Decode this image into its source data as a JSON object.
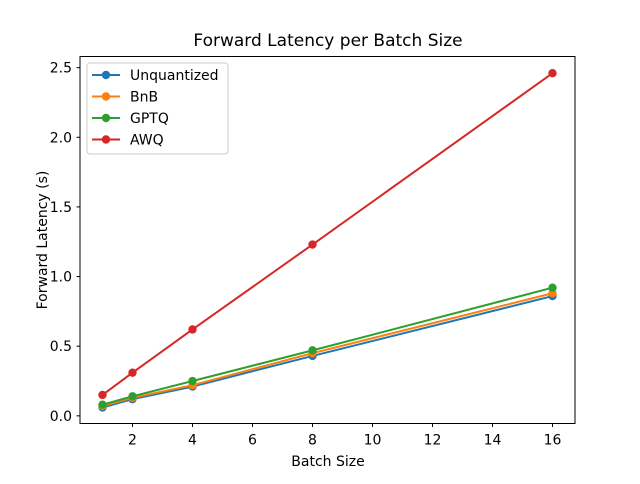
{
  "chart_data": {
    "type": "line",
    "title": "Forward Latency per Batch Size",
    "xlabel": "Batch Size",
    "ylabel": "Forward Latency (s)",
    "x": [
      1,
      2,
      4,
      8,
      16
    ],
    "series": [
      {
        "name": "Unquantized",
        "color": "#1f77b4",
        "values": [
          0.06,
          0.12,
          0.21,
          0.43,
          0.86
        ]
      },
      {
        "name": "BnB",
        "color": "#ff7f0e",
        "values": [
          0.07,
          0.13,
          0.22,
          0.45,
          0.88
        ]
      },
      {
        "name": "GPTQ",
        "color": "#2ca02c",
        "values": [
          0.08,
          0.14,
          0.25,
          0.47,
          0.92
        ]
      },
      {
        "name": "AWQ",
        "color": "#d62728",
        "values": [
          0.15,
          0.31,
          0.62,
          1.23,
          2.46
        ]
      }
    ],
    "xticks": [
      2,
      4,
      6,
      8,
      10,
      12,
      14,
      16
    ],
    "yticks": [
      0.0,
      0.5,
      1.0,
      1.5,
      2.0,
      2.5
    ],
    "xlim": [
      0.25,
      16.75
    ],
    "ylim": [
      -0.055,
      2.58
    ],
    "grid": false,
    "legend_position": "upper left",
    "marker": "circle",
    "axis_color": "#000000",
    "legend_border_color": "#cccccc",
    "background": "#ffffff"
  }
}
